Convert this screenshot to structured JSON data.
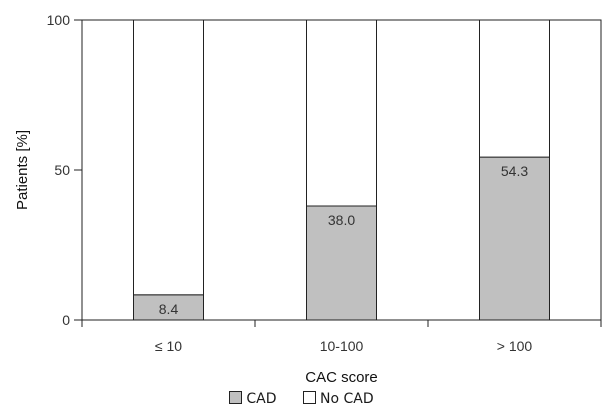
{
  "chart_data": {
    "type": "bar",
    "stacked": true,
    "categories": [
      "≤ 10",
      "10-100",
      "> 100"
    ],
    "series": [
      {
        "name": "CAD",
        "values": [
          8.4,
          38.0,
          54.3
        ],
        "color": "#c0c0c0"
      },
      {
        "name": "No CAD",
        "values": [
          91.6,
          62.0,
          45.7
        ],
        "color": "#ffffff"
      }
    ],
    "data_labels": [
      "8.4",
      "38.0",
      "54.3"
    ],
    "xlabel": "CAC score",
    "ylabel": "Patients [%]",
    "ylim": [
      0,
      100
    ],
    "yticks": [
      0,
      50,
      100
    ],
    "ytick_labels": [
      "0",
      "50",
      "100"
    ],
    "grid": false,
    "legend_position": "bottom"
  }
}
